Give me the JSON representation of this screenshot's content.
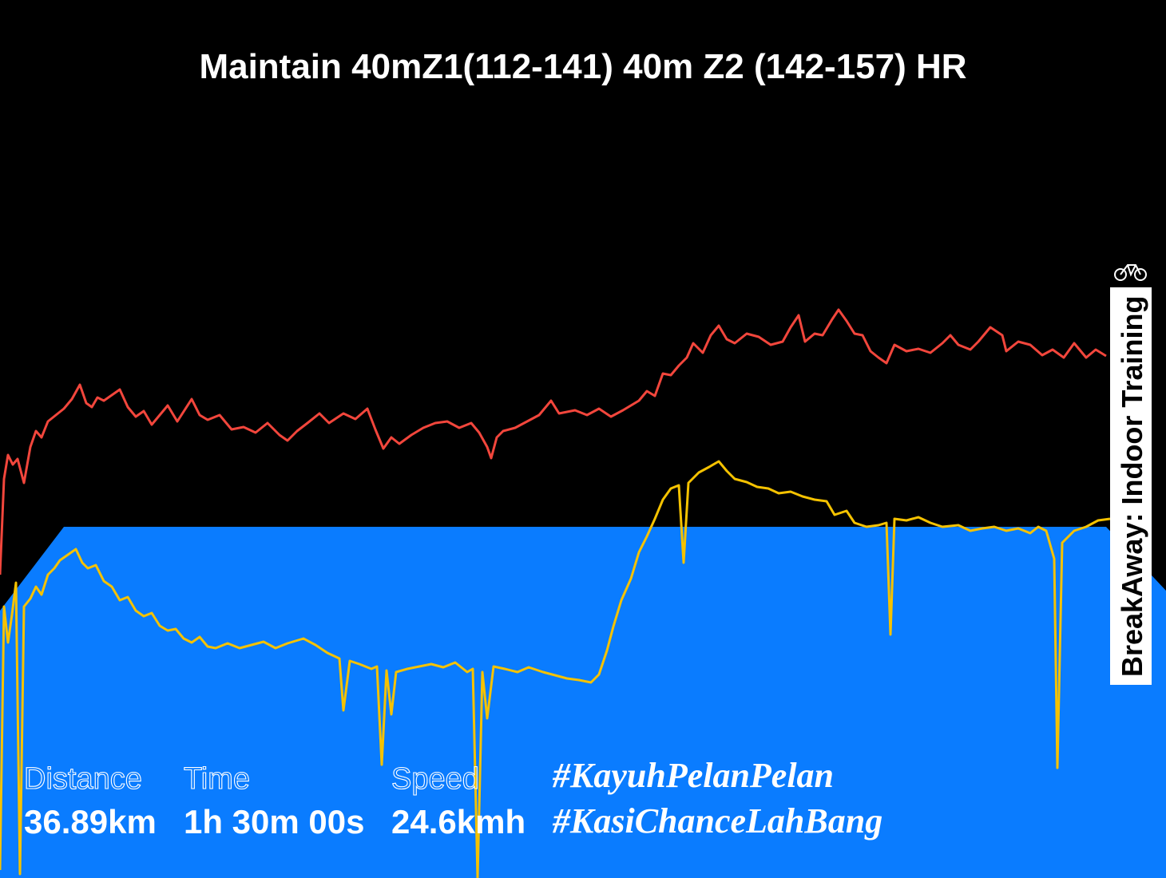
{
  "header": {
    "title": "Maintain 40mZ1(112-141) 40m Z2 (142-157) HR"
  },
  "stats": [
    {
      "label": "Distance",
      "value": "36.89km"
    },
    {
      "label": "Time",
      "value": "1h 30m 00s"
    },
    {
      "label": "Speed",
      "value": "24.6kmh"
    }
  ],
  "hashtags": [
    "#KayuhPelanPelan",
    "#KasiChanceLahBang"
  ],
  "brand": "BreakAway: Indoor Training"
}
